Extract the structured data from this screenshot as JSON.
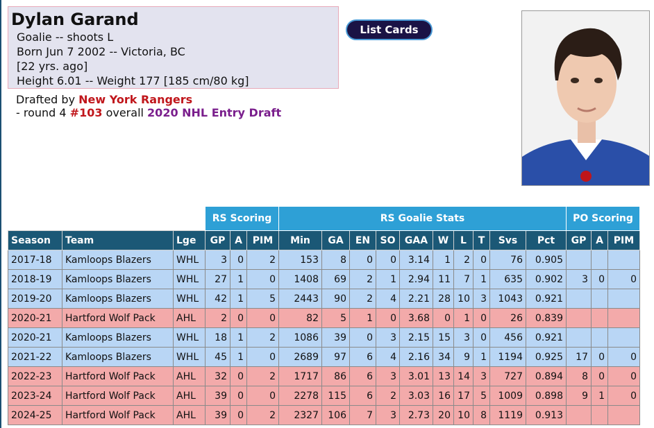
{
  "player": {
    "name": "Dylan Garand",
    "position_line": "Goalie -- shoots L",
    "born_line": "Born Jun 7 2002 -- Victoria, BC",
    "age_line": "[22 yrs. ago]",
    "size_line": "Height 6.01 -- Weight 177 [185 cm/80 kg]"
  },
  "draft": {
    "prefix": "Drafted by",
    "team": "New York Rangers",
    "round_text": "- round 4",
    "pick": "#103",
    "overall_text": "overall",
    "entry": "2020 NHL Entry Draft"
  },
  "buttons": {
    "list_cards": "List Cards"
  },
  "photo": {
    "icon": "player-headshot",
    "jersey_color": "#2a4fa8",
    "hair_color": "#2b1d16"
  },
  "table": {
    "groups": {
      "rs_scoring": "RS Scoring",
      "rs_goalie": "RS Goalie Stats",
      "po_scoring": "PO Scoring"
    },
    "columns": [
      "Season",
      "Team",
      "Lge",
      "GP",
      "A",
      "PIM",
      "Min",
      "GA",
      "EN",
      "SO",
      "GAA",
      "W",
      "L",
      "T",
      "Svs",
      "Pct",
      "GP",
      "A",
      "PIM"
    ],
    "rows": [
      {
        "league_type": "whl",
        "cells": [
          "2017-18",
          "Kamloops Blazers",
          "WHL",
          "3",
          "0",
          "2",
          "153",
          "8",
          "0",
          "0",
          "3.14",
          "1",
          "2",
          "0",
          "76",
          "0.905",
          "",
          "",
          ""
        ]
      },
      {
        "league_type": "whl",
        "cells": [
          "2018-19",
          "Kamloops Blazers",
          "WHL",
          "27",
          "1",
          "0",
          "1408",
          "69",
          "2",
          "1",
          "2.94",
          "11",
          "7",
          "1",
          "635",
          "0.902",
          "3",
          "0",
          "0"
        ]
      },
      {
        "league_type": "whl",
        "cells": [
          "2019-20",
          "Kamloops Blazers",
          "WHL",
          "42",
          "1",
          "5",
          "2443",
          "90",
          "2",
          "4",
          "2.21",
          "28",
          "10",
          "3",
          "1043",
          "0.921",
          "",
          "",
          ""
        ]
      },
      {
        "league_type": "ahl",
        "cells": [
          "2020-21",
          "Hartford Wolf Pack",
          "AHL",
          "2",
          "0",
          "0",
          "82",
          "5",
          "1",
          "0",
          "3.68",
          "0",
          "1",
          "0",
          "26",
          "0.839",
          "",
          "",
          ""
        ]
      },
      {
        "league_type": "whl",
        "cells": [
          "2020-21",
          "Kamloops Blazers",
          "WHL",
          "18",
          "1",
          "2",
          "1086",
          "39",
          "0",
          "3",
          "2.15",
          "15",
          "3",
          "0",
          "456",
          "0.921",
          "",
          "",
          ""
        ]
      },
      {
        "league_type": "whl",
        "cells": [
          "2021-22",
          "Kamloops Blazers",
          "WHL",
          "45",
          "1",
          "0",
          "2689",
          "97",
          "6",
          "4",
          "2.16",
          "34",
          "9",
          "1",
          "1194",
          "0.925",
          "17",
          "0",
          "0"
        ]
      },
      {
        "league_type": "ahl",
        "cells": [
          "2022-23",
          "Hartford Wolf Pack",
          "AHL",
          "32",
          "0",
          "2",
          "1717",
          "86",
          "6",
          "3",
          "3.01",
          "13",
          "14",
          "3",
          "727",
          "0.894",
          "8",
          "0",
          "0"
        ]
      },
      {
        "league_type": "ahl",
        "cells": [
          "2023-24",
          "Hartford Wolf Pack",
          "AHL",
          "39",
          "0",
          "0",
          "2278",
          "115",
          "6",
          "2",
          "3.03",
          "16",
          "17",
          "5",
          "1009",
          "0.898",
          "9",
          "1",
          "0"
        ]
      },
      {
        "league_type": "ahl",
        "cells": [
          "2024-25",
          "Hartford Wolf Pack",
          "AHL",
          "39",
          "0",
          "2",
          "2327",
          "106",
          "7",
          "3",
          "2.73",
          "20",
          "10",
          "8",
          "1119",
          "0.913",
          "",
          "",
          ""
        ]
      }
    ]
  }
}
